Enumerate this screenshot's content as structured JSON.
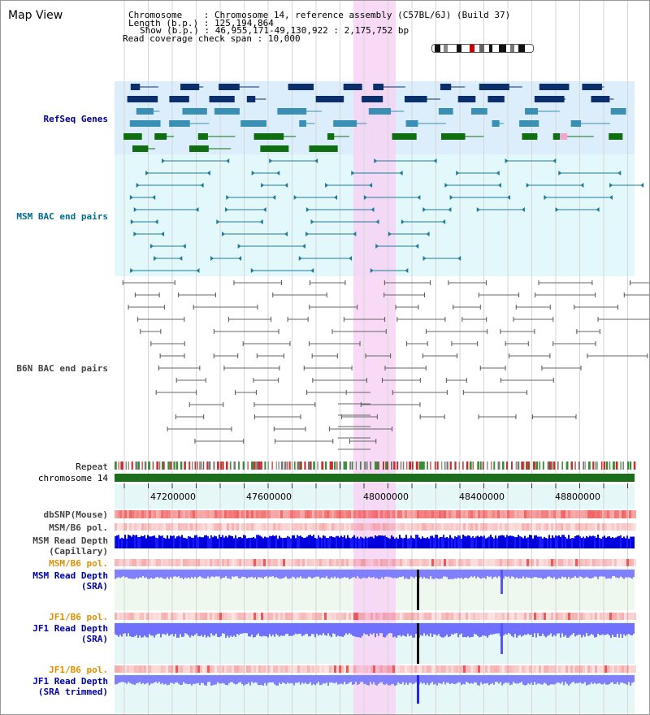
{
  "title": "Map View",
  "info": {
    "chromosome_label": "Chromosome    ",
    "chromosome_value": "Chromosome 14, reference assembly (C57BL/6J) (Build 37)",
    "length_label": "Length (b.p.)",
    "length_value": "125,194,864",
    "show_label": "Show (b.p.)",
    "show_value": "46,955,171-49,130,922 : 2,175,752 bp",
    "coverage_label": "Read coverage check span",
    "coverage_value": "10,000"
  },
  "tracks": {
    "refseq": "RefSeq Genes",
    "msm_bac": "MSM BAC end pairs",
    "b6n_bac": "B6N BAC end pairs",
    "repeat": "Repeat",
    "chromosome": "chromosome 14",
    "dbsnp": "dbSNP(Mouse)",
    "msm_b6_pol_1": "MSM/B6 pol.",
    "msm_depth_cap_1": "MSM Read Depth",
    "msm_depth_cap_2": "(Capillary)",
    "msm_b6_pol_2": "MSM/B6 pol.",
    "msm_depth_sra_1": "MSM Read Depth",
    "msm_depth_sra_2": "(SRA)",
    "jf1_b6_pol_1": "JF1/B6 pol.",
    "jf1_depth_sra_1": "JF1 Read Depth",
    "jf1_depth_sra_2": "(SRA)",
    "jf1_b6_pol_2": "JF1/B6 pol.",
    "jf1_depth_trim_1": "JF1 Read Depth",
    "jf1_depth_trim_2": "(SRA trimmed)"
  },
  "axis": {
    "ticks": [
      "47200000",
      "47600000",
      "48000000",
      "48400000",
      "48800000"
    ]
  },
  "colors": {
    "refseq_label": "#00008b",
    "msm_label": "#006c8c",
    "b6n_label": "#444444",
    "orange_label": "#e09000",
    "blue_label": "#0000aa",
    "highlight": "#f7d4f4",
    "refseq_bg": "#dceefb",
    "msm_bg": "#e3f8fa",
    "chrom_bar": "#1b6f1b"
  }
}
